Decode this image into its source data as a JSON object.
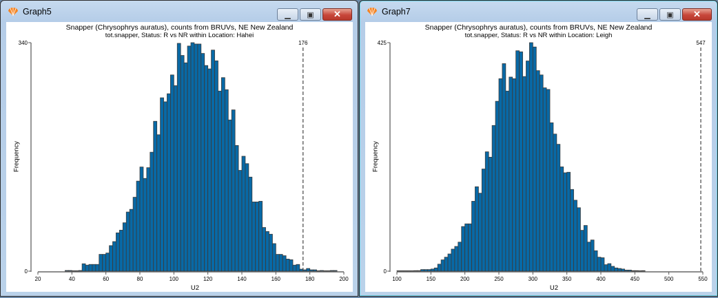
{
  "windows": [
    {
      "title": "Graph5",
      "app_icon": "shell-icon",
      "controls": {
        "minimize": "minimize-icon",
        "maximize": "restore-icon",
        "close": "close-icon"
      },
      "chart_data": {
        "type": "bar",
        "title": "Snapper (Chrysophrys auratus), counts from BRUVs, NE New Zealand",
        "subtitle": "tot.snapper, Status: R vs NR within Location: Hahei",
        "xlabel": "U2",
        "ylabel": "Frequency",
        "xlim": [
          20,
          200
        ],
        "ylim": [
          0,
          340
        ],
        "xticks": [
          20,
          40,
          60,
          80,
          100,
          120,
          140,
          160,
          180,
          200
        ],
        "yticks": [
          0,
          340
        ],
        "bin_width": 2,
        "bin_start": [
          36,
          38,
          40,
          42,
          44,
          46,
          48,
          50,
          52,
          54,
          56,
          58,
          60,
          62,
          64,
          66,
          68,
          70,
          72,
          74,
          76,
          78,
          80,
          82,
          84,
          86,
          88,
          90,
          92,
          94,
          96,
          98,
          100,
          102,
          104,
          106,
          108,
          110,
          112,
          114,
          116,
          118,
          120,
          122,
          124,
          126,
          128,
          130,
          132,
          134,
          136,
          138,
          140,
          142,
          144,
          146,
          148,
          150,
          152,
          154,
          156,
          158,
          160,
          162,
          164,
          166,
          168,
          170,
          172,
          174,
          176,
          178,
          180,
          182,
          184,
          186,
          188,
          190,
          192,
          194
        ],
        "values": [
          1,
          1,
          0,
          0,
          1,
          11,
          9,
          10,
          10,
          10,
          25,
          25,
          27,
          38,
          44,
          57,
          61,
          72,
          88,
          92,
          110,
          134,
          155,
          138,
          154,
          177,
          223,
          203,
          258,
          252,
          264,
          292,
          276,
          339,
          321,
          310,
          335,
          340,
          338,
          338,
          324,
          306,
          301,
          329,
          313,
          268,
          288,
          270,
          225,
          240,
          187,
          150,
          171,
          160,
          140,
          103,
          103,
          104,
          65,
          59,
          55,
          41,
          25,
          25,
          23,
          18,
          17,
          9,
          10,
          3,
          2,
          4,
          2,
          2,
          0,
          1,
          0,
          0,
          1,
          1
        ],
        "observed_line": {
          "value": 176,
          "label": "176",
          "style": "dashed"
        },
        "bar_color": "#0869a6",
        "grid": false
      }
    },
    {
      "title": "Graph7",
      "app_icon": "shell-icon",
      "controls": {
        "minimize": "minimize-icon",
        "maximize": "restore-icon",
        "close": "close-icon"
      },
      "chart_data": {
        "type": "bar",
        "title": "Snapper (Chrysophrys auratus), counts from BRUVs, NE New Zealand",
        "subtitle": "tot.snapper, Status: R vs NR within Location: Leigh",
        "xlabel": "U2",
        "ylabel": "Frequency",
        "xlim": [
          100,
          550
        ],
        "ylim": [
          0,
          425
        ],
        "xticks": [
          100,
          150,
          200,
          250,
          300,
          350,
          400,
          450,
          500,
          550
        ],
        "yticks": [
          0,
          425
        ],
        "bin_width": 5,
        "bin_start": [
          100,
          105,
          110,
          115,
          120,
          125,
          130,
          135,
          140,
          145,
          150,
          155,
          160,
          165,
          170,
          175,
          180,
          185,
          190,
          195,
          200,
          205,
          210,
          215,
          220,
          225,
          230,
          235,
          240,
          245,
          250,
          255,
          260,
          265,
          270,
          275,
          280,
          285,
          290,
          295,
          300,
          305,
          310,
          315,
          320,
          325,
          330,
          335,
          340,
          345,
          350,
          355,
          360,
          365,
          370,
          375,
          380,
          385,
          390,
          395,
          400,
          405,
          410,
          415,
          420,
          425,
          430,
          435,
          440,
          445,
          450,
          455,
          460
        ],
        "values": [
          0,
          0,
          0,
          0,
          0,
          1,
          1,
          3,
          3,
          3,
          4,
          6,
          13,
          21,
          26,
          32,
          41,
          46,
          54,
          83,
          88,
          88,
          130,
          157,
          145,
          190,
          222,
          212,
          271,
          316,
          358,
          386,
          335,
          361,
          358,
          410,
          408,
          362,
          391,
          425,
          417,
          373,
          365,
          341,
          338,
          276,
          255,
          236,
          194,
          183,
          184,
          152,
          132,
          118,
          76,
          85,
          54,
          58,
          38,
          26,
          25,
          12,
          14,
          9,
          6,
          5,
          4,
          2,
          2,
          1,
          1,
          0,
          1
        ],
        "observed_line": {
          "value": 547,
          "label": "547",
          "style": "dashed"
        },
        "bar_color": "#0869a6",
        "grid": false
      }
    }
  ]
}
